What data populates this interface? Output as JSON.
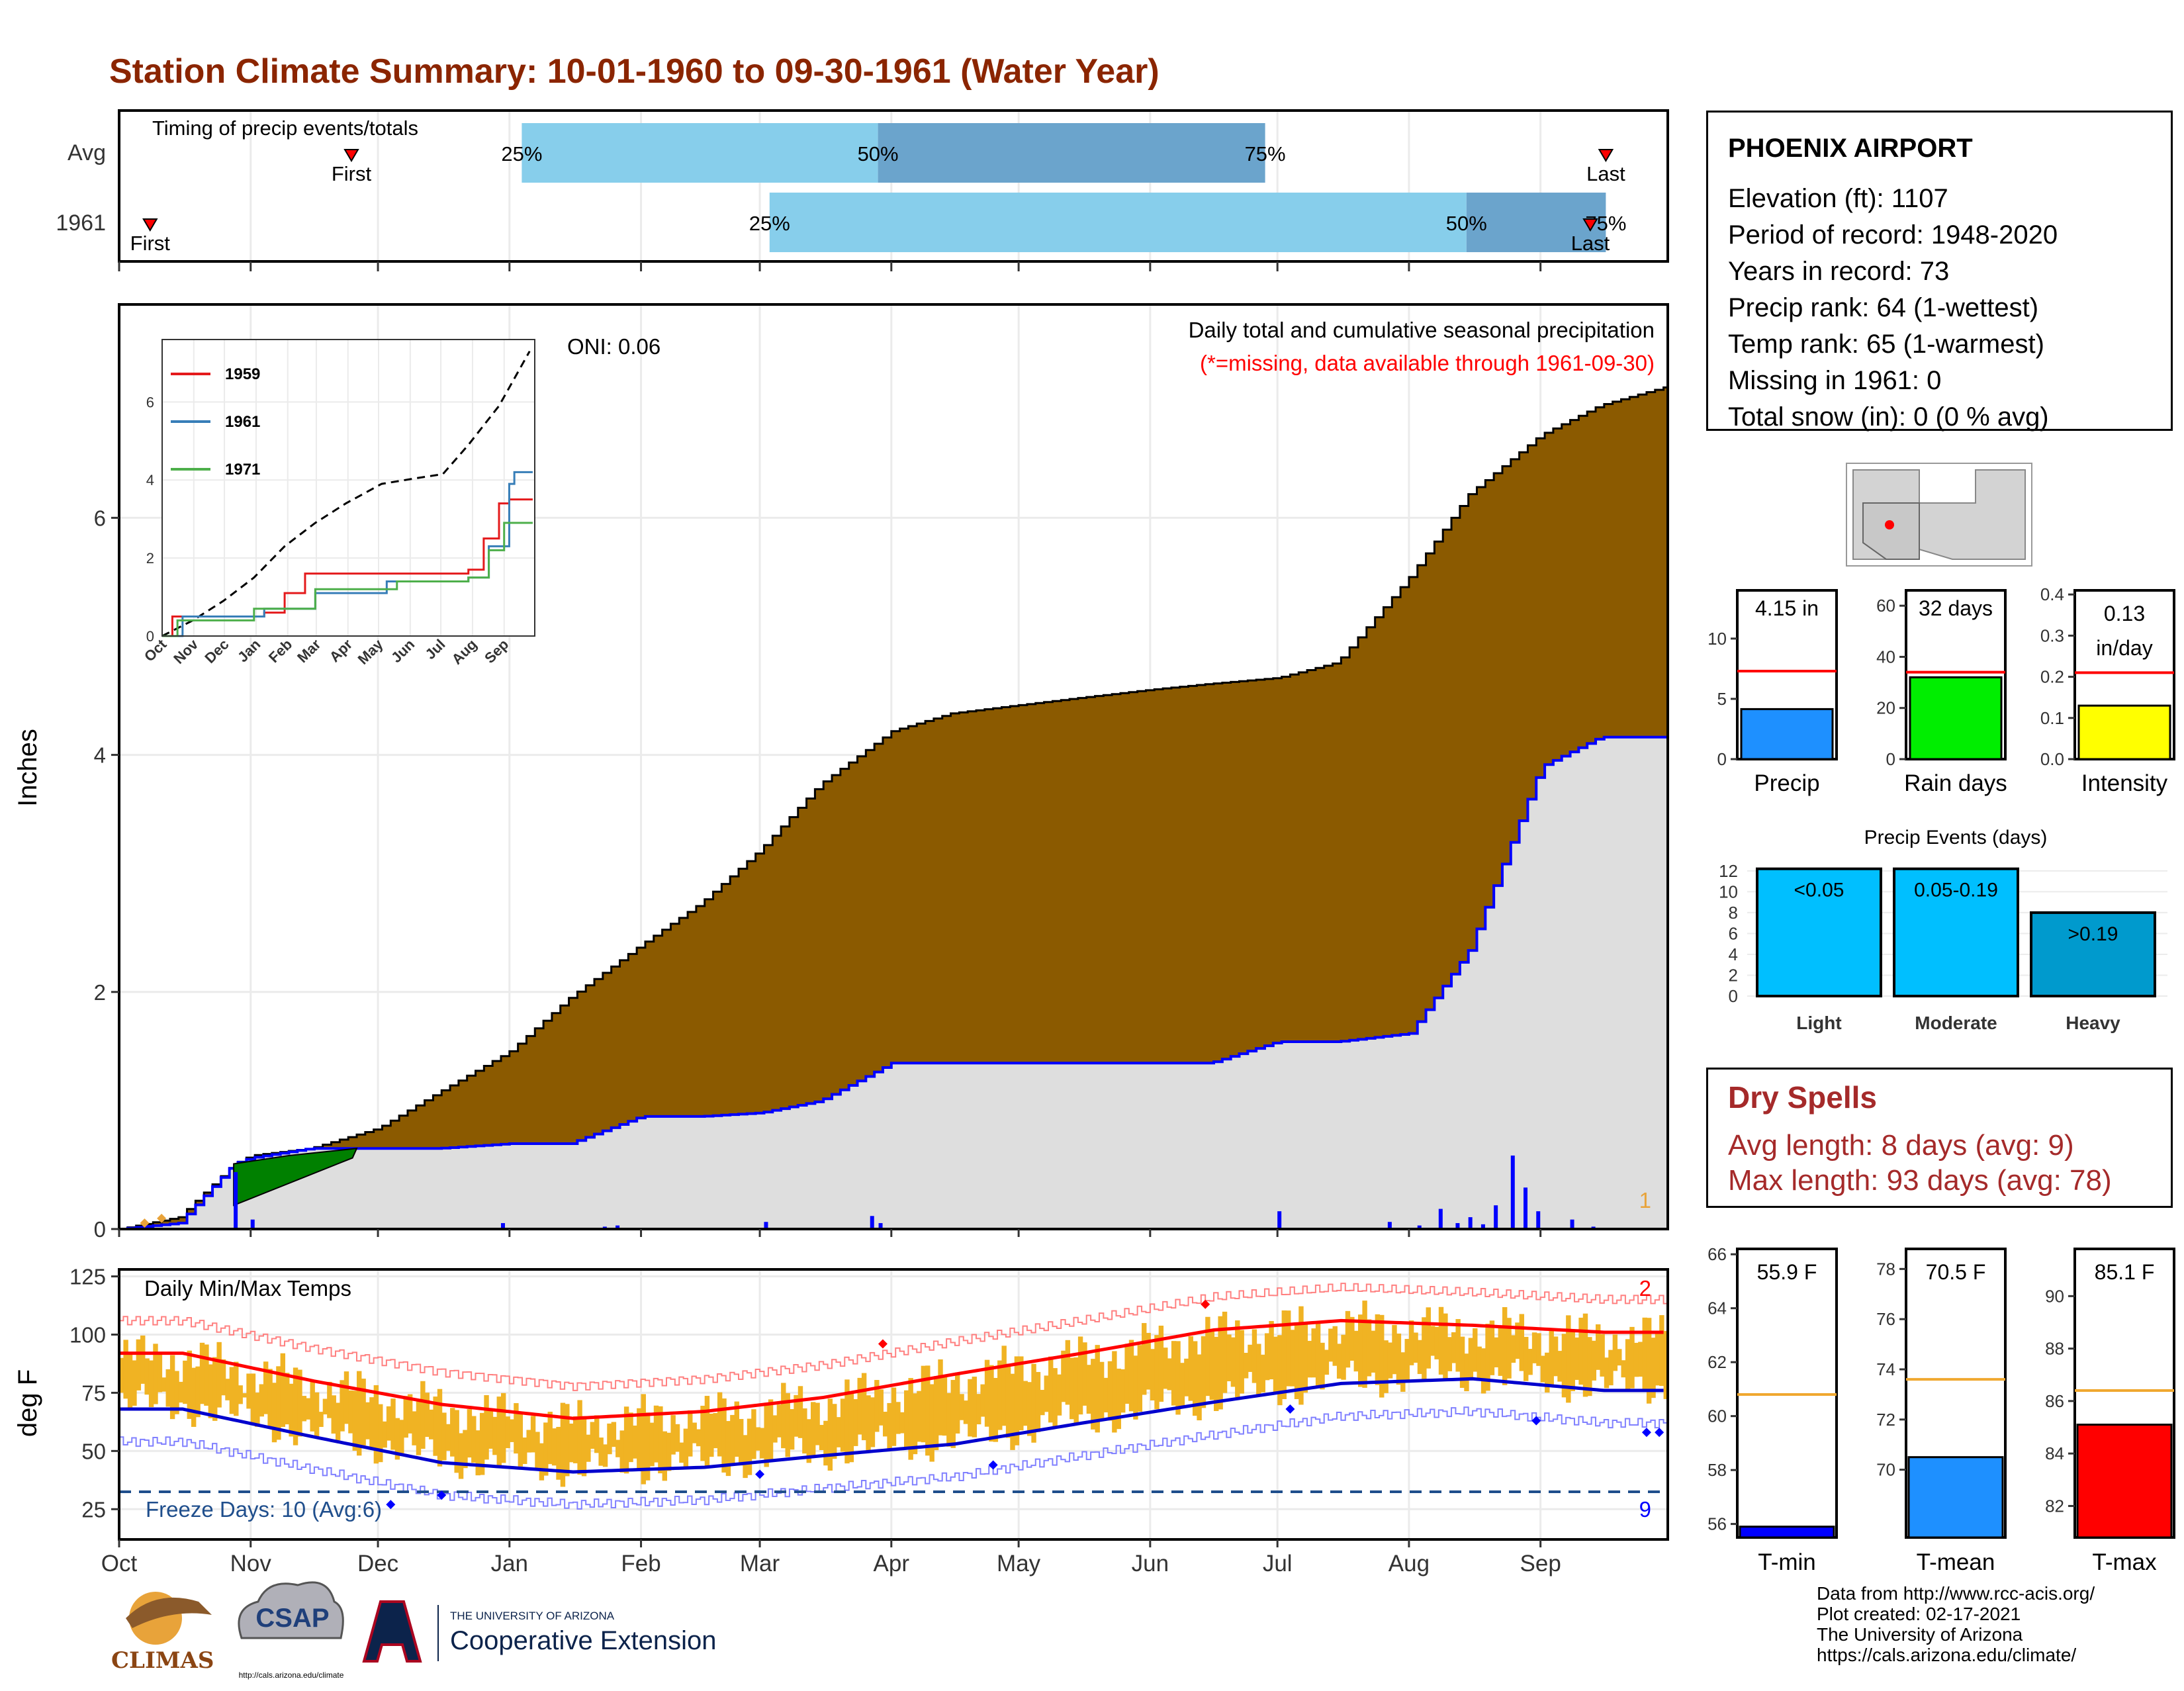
{
  "title": "Station Climate Summary: 10-01-1960 to 09-30-1961 (Water Year)",
  "timing": {
    "title": "Timing of precip events/totals",
    "rows": [
      {
        "label": "Avg",
        "first_label": "First",
        "last_label": "Last",
        "first": 0.15,
        "p25": 0.26,
        "p50": 0.49,
        "p75": 0.74,
        "last": 0.96,
        "p25_text": "25%",
        "p50_text": "50%",
        "p75_text": "75%"
      },
      {
        "label": "1961",
        "first_label": "First",
        "last_label": "Last",
        "first": 0.02,
        "p25": 0.42,
        "p50": 0.87,
        "p75": 0.96,
        "last": 0.95,
        "p25_text": "25%",
        "p50_text": "50%",
        "p75_text": "75%"
      }
    ]
  },
  "precip_panel": {
    "ylabel": "Inches",
    "yticks": [
      "0",
      "2",
      "4",
      "6"
    ],
    "legend_line1": "Daily total and cumulative seasonal precipitation",
    "legend_line2": "(*=missing, data available through 1961-09-30)",
    "oni": "ONI: 0.06",
    "corner_count": "1"
  },
  "inset": {
    "yticks": [
      "0",
      "2",
      "4",
      "6"
    ],
    "xticks": [
      "Oct",
      "Nov",
      "Dec",
      "Jan",
      "Feb",
      "Mar",
      "Apr",
      "May",
      "Jun",
      "Jul",
      "Aug",
      "Sep"
    ],
    "legend": [
      {
        "name": "1959",
        "color": "#e41a1c"
      },
      {
        "name": "1961",
        "color": "#377eb8"
      },
      {
        "name": "1971",
        "color": "#4daf4a"
      }
    ]
  },
  "temp_panel": {
    "ylabel": "deg F",
    "title": "Daily Min/Max Temps",
    "yticks": [
      "25",
      "50",
      "75",
      "100",
      "125"
    ],
    "freeze_text": "Freeze Days: 10 (Avg:6)",
    "count_top": "2",
    "count_bottom": "9"
  },
  "months": [
    "Oct",
    "Nov",
    "Dec",
    "Jan",
    "Feb",
    "Mar",
    "Apr",
    "May",
    "Jun",
    "Jul",
    "Aug",
    "Sep"
  ],
  "station": {
    "name": "PHOENIX AIRPORT",
    "lines": [
      "Elevation (ft): 1107",
      "Period of record: 1948-2020",
      "Years in record: 73",
      "Precip rank: 64 (1-wettest)",
      "Temp rank: 65 (1-warmest)",
      "Missing in 1961: 0",
      "Total snow (in): 0 (0 % avg)"
    ]
  },
  "mini_bars": [
    {
      "label": "Precip",
      "value_text": "4.15 in",
      "value": 4.15,
      "avg": 7.3,
      "max": 14,
      "yticks": [
        "0",
        "5",
        "10"
      ],
      "tickvals": [
        0,
        5,
        10
      ],
      "color": "#1e90ff"
    },
    {
      "label": "Rain days",
      "value_text": "32 days",
      "value": 32,
      "avg": 34,
      "max": 66,
      "yticks": [
        "0",
        "20",
        "40",
        "60"
      ],
      "tickvals": [
        0,
        20,
        40,
        60
      ],
      "color": "#00ee00"
    },
    {
      "label": "Intensity",
      "value_text": "0.13 in/day",
      "value": 0.13,
      "avg": 0.21,
      "max": 0.41,
      "yticks": [
        "0.0",
        "0.1",
        "0.2",
        "0.3",
        "0.4"
      ],
      "tickvals": [
        0,
        0.1,
        0.2,
        0.3,
        0.4
      ],
      "color": "#ffff00"
    }
  ],
  "precip_events": {
    "title": "Precip Events (days)",
    "yticks": [
      "0",
      "2",
      "4",
      "6",
      "8",
      "10",
      "12"
    ],
    "bars": [
      {
        "label": "Light",
        "value_text": "<0.05",
        "value": 12.2
      },
      {
        "label": "Moderate",
        "value_text": "0.05-0.19",
        "value": 12.2
      },
      {
        "label": "Heavy",
        "value_text": ">0.19",
        "value": 8
      }
    ]
  },
  "dry_spells": {
    "title": "Dry Spells",
    "avg_line": "Avg length: 8 days (avg: 9)",
    "max_line": "Max length: 93 days (avg: 78)"
  },
  "temp_bars": [
    {
      "label": "T-min",
      "value_text": "55.9 F",
      "value": 55.9,
      "avg": 60.8,
      "min": 55.5,
      "max": 66.2,
      "yticks": [
        "56",
        "58",
        "60",
        "62",
        "64",
        "66"
      ],
      "tickvals": [
        56,
        58,
        60,
        62,
        64,
        66
      ],
      "color": "#0000ff"
    },
    {
      "label": "T-mean",
      "value_text": "70.5 F",
      "value": 70.5,
      "avg": 73.6,
      "min": 67.3,
      "max": 78.8,
      "yticks": [
        "70",
        "72",
        "74",
        "76",
        "78"
      ],
      "tickvals": [
        70,
        72,
        74,
        76,
        78
      ],
      "color": "#1e90ff"
    },
    {
      "label": "T-max",
      "value_text": "85.1 F",
      "value": 85.1,
      "avg": 86.4,
      "min": 80.8,
      "max": 91.8,
      "yticks": [
        "82",
        "84",
        "86",
        "88",
        "90"
      ],
      "tickvals": [
        82,
        84,
        86,
        88,
        90
      ],
      "color": "#ff0000"
    }
  ],
  "logos": {
    "climas": "CLIMAS",
    "csap": "CSAP",
    "csap_url": "http://cals.arizona.edu/climate",
    "ua_small": "THE UNIVERSITY OF ARIZONA",
    "ua_big": "Cooperative Extension"
  },
  "footer": [
    "Data from http://www.rcc-acis.org/",
    "Plot created: 02-17-2021",
    "The University of Arizona",
    "https://cals.arizona.edu/climate/"
  ],
  "chart_data": [
    {
      "type": "bar",
      "title": "Timing of precip events/totals",
      "categories": [
        "Avg",
        "1961"
      ],
      "series": [
        {
          "name": "25%",
          "values": [
            0.26,
            0.42
          ]
        },
        {
          "name": "50%",
          "values": [
            0.49,
            0.87
          ]
        },
        {
          "name": "75%",
          "values": [
            0.74,
            0.96
          ]
        }
      ]
    },
    {
      "type": "area",
      "title": "Daily total and cumulative seasonal precipitation",
      "ylabel": "Inches",
      "ylim": [
        0,
        7.8
      ],
      "x": [
        "1960-10-01",
        "1960-10-15",
        "1960-10-28",
        "1960-11-01",
        "1960-11-15",
        "1960-12-01",
        "1960-12-15",
        "1961-01-01",
        "1961-01-15",
        "1961-02-01",
        "1961-02-15",
        "1961-03-01",
        "1961-03-15",
        "1961-04-01",
        "1961-04-15",
        "1961-05-01",
        "1961-05-15",
        "1961-06-01",
        "1961-06-15",
        "1961-07-01",
        "1961-07-15",
        "1961-08-01",
        "1961-08-15",
        "1961-09-01",
        "1961-09-15",
        "1961-09-30"
      ],
      "series": [
        {
          "name": "",
          "values": [
            0.0,
            0.1,
            0.55,
            0.62,
            0.68,
            0.85,
            1.15,
            1.5,
            1.95,
            2.4,
            2.75,
            3.2,
            3.75,
            4.2,
            4.35,
            4.42,
            4.48,
            4.55,
            4.6,
            4.65,
            4.78,
            5.5,
            6.2,
            6.7,
            6.95,
            7.1
          ]
        },
        {
          "name": "1961",
          "values": [
            0.0,
            0.05,
            0.55,
            0.6,
            0.68,
            0.68,
            0.68,
            0.72,
            0.72,
            0.95,
            0.95,
            0.98,
            1.08,
            1.4,
            1.4,
            1.4,
            1.4,
            1.4,
            1.4,
            1.58,
            1.58,
            1.65,
            2.35,
            3.9,
            4.15,
            4.15
          ]
        }
      ]
    },
    {
      "type": "line",
      "title": "Daily Min/Max Temps",
      "ylabel": "deg F",
      "ylim": [
        12,
        128
      ],
      "x": [
        "Oct",
        "Nov",
        "Dec",
        "Jan",
        "Feb",
        "Mar",
        "Apr",
        "May",
        "Jun",
        "Jul",
        "Aug",
        "Sep"
      ],
      "series": [
        {
          "name": "",
          "values": [
            92,
            80,
            70,
            64,
            67,
            73,
            83,
            92,
            102,
            106,
            104,
            101
          ]
        },
        {
          "name": "",
          "values": [
            68,
            56,
            45,
            41,
            43,
            48,
            53,
            62,
            71,
            79,
            81,
            76
          ]
        }
      ]
    },
    {
      "type": "bar",
      "title": "Precip Events (days)",
      "categories": [
        "Light",
        "Moderate",
        "Heavy"
      ],
      "values": [
        12.2,
        12.2,
        8
      ],
      "ylim": [
        0,
        12.5
      ]
    },
    {
      "type": "bar",
      "categories": [
        "T-min",
        "T-mean",
        "T-max"
      ],
      "values": [
        55.9,
        70.5,
        85.1
      ]
    }
  ]
}
